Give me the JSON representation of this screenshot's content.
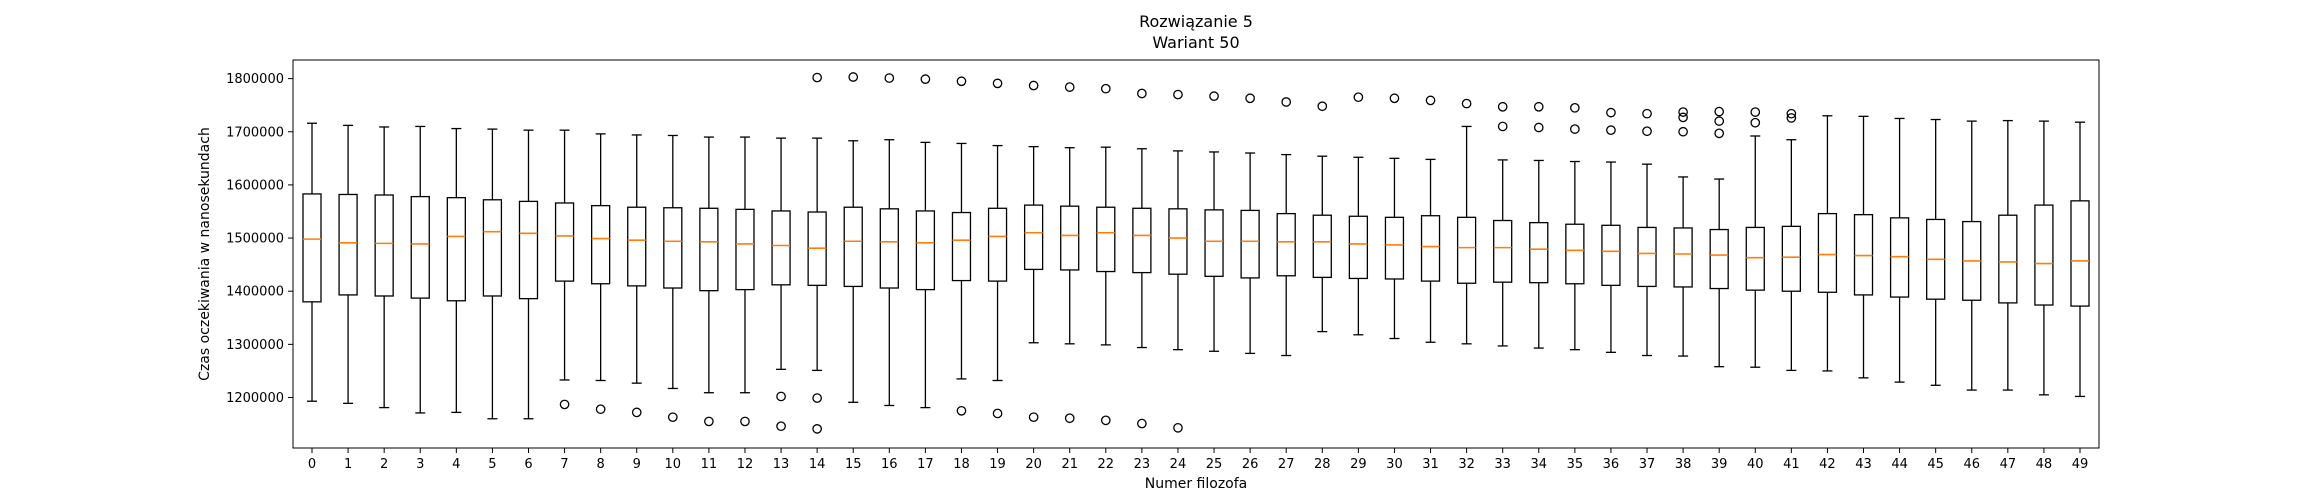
{
  "chart_data": {
    "type": "boxplot",
    "title": "Rozwiązanie 5",
    "subtitle": "Wariant 50",
    "xlabel": "Numer filozofa",
    "ylabel": "Czas oczekiwania w nanosekundach",
    "ylim": [
      1105000,
      1835000
    ],
    "yticks": [
      1200000,
      1300000,
      1400000,
      1500000,
      1600000,
      1700000,
      1800000
    ],
    "categories": [
      "0",
      "1",
      "2",
      "3",
      "4",
      "5",
      "6",
      "7",
      "8",
      "9",
      "10",
      "11",
      "12",
      "13",
      "14",
      "15",
      "16",
      "17",
      "18",
      "19",
      "20",
      "21",
      "22",
      "23",
      "24",
      "25",
      "26",
      "27",
      "28",
      "29",
      "30",
      "31",
      "32",
      "33",
      "34",
      "35",
      "36",
      "37",
      "38",
      "39",
      "40",
      "41",
      "42",
      "43",
      "44",
      "45",
      "46",
      "47",
      "48",
      "49"
    ],
    "boxes": [
      {
        "x": "0",
        "whislo": 1193000,
        "q1": 1380000,
        "med": 1498000,
        "q3": 1583000,
        "whishi": 1716000,
        "fliers": []
      },
      {
        "x": "1",
        "whislo": 1189000,
        "q1": 1393000,
        "med": 1491000,
        "q3": 1582000,
        "whishi": 1712000,
        "fliers": []
      },
      {
        "x": "2",
        "whislo": 1181000,
        "q1": 1391000,
        "med": 1490000,
        "q3": 1581000,
        "whishi": 1709000,
        "fliers": []
      },
      {
        "x": "3",
        "whislo": 1171000,
        "q1": 1387000,
        "med": 1489000,
        "q3": 1578000,
        "whishi": 1710000,
        "fliers": []
      },
      {
        "x": "4",
        "whislo": 1172000,
        "q1": 1382000,
        "med": 1503000,
        "q3": 1576000,
        "whishi": 1706000,
        "fliers": []
      },
      {
        "x": "5",
        "whislo": 1160000,
        "q1": 1391000,
        "med": 1512000,
        "q3": 1572000,
        "whishi": 1705000,
        "fliers": []
      },
      {
        "x": "6",
        "whislo": 1160000,
        "q1": 1386000,
        "med": 1509000,
        "q3": 1569000,
        "whishi": 1703000,
        "fliers": []
      },
      {
        "x": "7",
        "whislo": 1233000,
        "q1": 1419000,
        "med": 1504000,
        "q3": 1566000,
        "whishi": 1703000,
        "fliers": [
          1187000
        ]
      },
      {
        "x": "8",
        "whislo": 1232000,
        "q1": 1414000,
        "med": 1499000,
        "q3": 1561000,
        "whishi": 1696000,
        "fliers": [
          1178000
        ]
      },
      {
        "x": "9",
        "whislo": 1227000,
        "q1": 1410000,
        "med": 1496000,
        "q3": 1558000,
        "whishi": 1694000,
        "fliers": [
          1172000
        ]
      },
      {
        "x": "10",
        "whislo": 1217000,
        "q1": 1406000,
        "med": 1494000,
        "q3": 1557000,
        "whishi": 1693000,
        "fliers": [
          1163000
        ]
      },
      {
        "x": "11",
        "whislo": 1209000,
        "q1": 1401000,
        "med": 1493000,
        "q3": 1556000,
        "whishi": 1690000,
        "fliers": [
          1155000
        ]
      },
      {
        "x": "12",
        "whislo": 1209000,
        "q1": 1403000,
        "med": 1489000,
        "q3": 1554000,
        "whishi": 1690000,
        "fliers": [
          1155000
        ]
      },
      {
        "x": "13",
        "whislo": 1253000,
        "q1": 1412000,
        "med": 1486000,
        "q3": 1551000,
        "whishi": 1688000,
        "fliers": [
          1202000,
          1146000
        ]
      },
      {
        "x": "14",
        "whislo": 1251000,
        "q1": 1411000,
        "med": 1481000,
        "q3": 1549000,
        "whishi": 1688000,
        "fliers": [
          1802000,
          1199000,
          1141000
        ]
      },
      {
        "x": "15",
        "whislo": 1191000,
        "q1": 1409000,
        "med": 1494000,
        "q3": 1558000,
        "whishi": 1683000,
        "fliers": [
          1803000
        ]
      },
      {
        "x": "16",
        "whislo": 1185000,
        "q1": 1406000,
        "med": 1493000,
        "q3": 1555000,
        "whishi": 1685000,
        "fliers": [
          1801000
        ]
      },
      {
        "x": "17",
        "whislo": 1181000,
        "q1": 1403000,
        "med": 1491000,
        "q3": 1551000,
        "whishi": 1680000,
        "fliers": [
          1799000
        ]
      },
      {
        "x": "18",
        "whislo": 1235000,
        "q1": 1420000,
        "med": 1496000,
        "q3": 1548000,
        "whishi": 1678000,
        "fliers": [
          1795000,
          1175000
        ]
      },
      {
        "x": "19",
        "whislo": 1232000,
        "q1": 1419000,
        "med": 1503000,
        "q3": 1556000,
        "whishi": 1674000,
        "fliers": [
          1791000,
          1170000
        ]
      },
      {
        "x": "20",
        "whislo": 1303000,
        "q1": 1441000,
        "med": 1510000,
        "q3": 1562000,
        "whishi": 1672000,
        "fliers": [
          1787000,
          1163000
        ]
      },
      {
        "x": "21",
        "whislo": 1301000,
        "q1": 1440000,
        "med": 1505000,
        "q3": 1560000,
        "whishi": 1670000,
        "fliers": [
          1784000,
          1161000
        ]
      },
      {
        "x": "22",
        "whislo": 1299000,
        "q1": 1437000,
        "med": 1510000,
        "q3": 1558000,
        "whishi": 1671000,
        "fliers": [
          1781000,
          1157000
        ]
      },
      {
        "x": "23",
        "whislo": 1294000,
        "q1": 1435000,
        "med": 1505000,
        "q3": 1556000,
        "whishi": 1668000,
        "fliers": [
          1772000,
          1151000
        ]
      },
      {
        "x": "24",
        "whislo": 1290000,
        "q1": 1432000,
        "med": 1500000,
        "q3": 1555000,
        "whishi": 1664000,
        "fliers": [
          1770000,
          1143000
        ]
      },
      {
        "x": "25",
        "whislo": 1287000,
        "q1": 1428000,
        "med": 1494000,
        "q3": 1553000,
        "whishi": 1662000,
        "fliers": [
          1767000
        ]
      },
      {
        "x": "26",
        "whislo": 1283000,
        "q1": 1425000,
        "med": 1494000,
        "q3": 1552000,
        "whishi": 1660000,
        "fliers": [
          1763000
        ]
      },
      {
        "x": "27",
        "whislo": 1279000,
        "q1": 1429000,
        "med": 1493000,
        "q3": 1546000,
        "whishi": 1657000,
        "fliers": [
          1756000
        ]
      },
      {
        "x": "28",
        "whislo": 1324000,
        "q1": 1426000,
        "med": 1493000,
        "q3": 1543000,
        "whishi": 1654000,
        "fliers": [
          1748000
        ]
      },
      {
        "x": "29",
        "whislo": 1318000,
        "q1": 1424000,
        "med": 1489000,
        "q3": 1541000,
        "whishi": 1652000,
        "fliers": [
          1765000
        ]
      },
      {
        "x": "30",
        "whislo": 1311000,
        "q1": 1423000,
        "med": 1487000,
        "q3": 1539000,
        "whishi": 1650000,
        "fliers": [
          1763000
        ]
      },
      {
        "x": "31",
        "whislo": 1304000,
        "q1": 1419000,
        "med": 1484000,
        "q3": 1542000,
        "whishi": 1648000,
        "fliers": [
          1759000
        ]
      },
      {
        "x": "32",
        "whislo": 1301000,
        "q1": 1415000,
        "med": 1482000,
        "q3": 1539000,
        "whishi": 1710000,
        "fliers": [
          1753000
        ]
      },
      {
        "x": "33",
        "whislo": 1297000,
        "q1": 1417000,
        "med": 1482000,
        "q3": 1533000,
        "whishi": 1647000,
        "fliers": [
          1747000,
          1710000
        ]
      },
      {
        "x": "34",
        "whislo": 1293000,
        "q1": 1416000,
        "med": 1479000,
        "q3": 1529000,
        "whishi": 1646000,
        "fliers": [
          1747000,
          1708000
        ]
      },
      {
        "x": "35",
        "whislo": 1290000,
        "q1": 1414000,
        "med": 1477000,
        "q3": 1526000,
        "whishi": 1644000,
        "fliers": [
          1745000,
          1705000
        ]
      },
      {
        "x": "36",
        "whislo": 1285000,
        "q1": 1411000,
        "med": 1475000,
        "q3": 1524000,
        "whishi": 1643000,
        "fliers": [
          1736000,
          1703000
        ]
      },
      {
        "x": "37",
        "whislo": 1279000,
        "q1": 1409000,
        "med": 1471000,
        "q3": 1520000,
        "whishi": 1639000,
        "fliers": [
          1734000,
          1701000
        ]
      },
      {
        "x": "38",
        "whislo": 1278000,
        "q1": 1408000,
        "med": 1470000,
        "q3": 1519000,
        "whishi": 1615000,
        "fliers": [
          1737000,
          1727000,
          1700000
        ]
      },
      {
        "x": "39",
        "whislo": 1258000,
        "q1": 1405000,
        "med": 1468000,
        "q3": 1516000,
        "whishi": 1611000,
        "fliers": [
          1738000,
          1720000,
          1697000
        ]
      },
      {
        "x": "40",
        "whislo": 1257000,
        "q1": 1402000,
        "med": 1463000,
        "q3": 1520000,
        "whishi": 1692000,
        "fliers": [
          1737000,
          1717000
        ]
      },
      {
        "x": "41",
        "whislo": 1251000,
        "q1": 1400000,
        "med": 1464000,
        "q3": 1522000,
        "whishi": 1685000,
        "fliers": [
          1734000,
          1726000
        ]
      },
      {
        "x": "42",
        "whislo": 1250000,
        "q1": 1398000,
        "med": 1469000,
        "q3": 1546000,
        "whishi": 1730000,
        "fliers": []
      },
      {
        "x": "43",
        "whislo": 1237000,
        "q1": 1393000,
        "med": 1467000,
        "q3": 1544000,
        "whishi": 1729000,
        "fliers": []
      },
      {
        "x": "44",
        "whislo": 1229000,
        "q1": 1389000,
        "med": 1465000,
        "q3": 1538000,
        "whishi": 1725000,
        "fliers": []
      },
      {
        "x": "45",
        "whislo": 1223000,
        "q1": 1385000,
        "med": 1460000,
        "q3": 1535000,
        "whishi": 1723000,
        "fliers": []
      },
      {
        "x": "46",
        "whislo": 1214000,
        "q1": 1383000,
        "med": 1457000,
        "q3": 1531000,
        "whishi": 1720000,
        "fliers": []
      },
      {
        "x": "47",
        "whislo": 1214000,
        "q1": 1378000,
        "med": 1455000,
        "q3": 1543000,
        "whishi": 1721000,
        "fliers": []
      },
      {
        "x": "48",
        "whislo": 1205000,
        "q1": 1374000,
        "med": 1452000,
        "q3": 1562000,
        "whishi": 1720000,
        "fliers": []
      },
      {
        "x": "49",
        "whislo": 1202000,
        "q1": 1372000,
        "med": 1457000,
        "q3": 1570000,
        "whishi": 1718000,
        "fliers": []
      }
    ],
    "colors": {
      "box": "#000000",
      "median": "#ff7f0e",
      "whisker": "#000000",
      "flier": "#000000"
    },
    "grid": false,
    "legend": "none"
  }
}
